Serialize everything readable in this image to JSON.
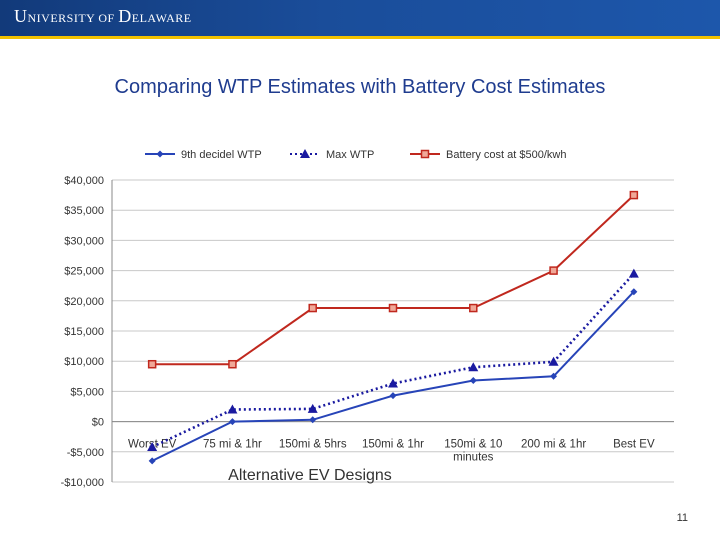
{
  "header": {
    "logo_text": "UNIVERSITY OF DELAWARE",
    "logo_parts": [
      "U",
      "NIVERSITY",
      " OF ",
      "D",
      "ELAWARE"
    ]
  },
  "slide": {
    "title": "Comparing WTP Estimates with Battery Cost Estimates",
    "page_number": "11"
  },
  "colors": {
    "banner": "#1a4d9a",
    "accent": "#f2c200",
    "title": "#1f3c8f",
    "series_blue": "#2744b8",
    "series_navy": "#1a1aa0",
    "series_red": "#c0281e"
  },
  "chart_data": {
    "type": "line",
    "title": "",
    "xlabel": "Alternative EV Designs",
    "ylabel": "",
    "categories": [
      "Worst EV",
      "75 mi & 1hr",
      "150mi & 5hrs",
      "150mi & 1hr",
      "150mi & 10 minutes",
      "200 mi & 1hr",
      "Best EV"
    ],
    "category_lines": [
      [
        "Worst EV"
      ],
      [
        "75 mi & 1hr"
      ],
      [
        "150mi & 5hrs"
      ],
      [
        "150mi & 1hr"
      ],
      [
        "150mi & 10",
        "minutes"
      ],
      [
        "200 mi & 1hr"
      ],
      [
        "Best EV"
      ]
    ],
    "ylim": [
      -10000,
      40000
    ],
    "yticks": [
      40000,
      35000,
      30000,
      25000,
      20000,
      15000,
      10000,
      5000,
      0,
      -5000,
      -10000
    ],
    "ytick_labels": [
      "$40,000",
      "$35,000",
      "$30,000",
      "$25,000",
      "$20,000",
      "$15,000",
      "$10,000",
      "$5,000",
      "$0",
      "-$5,000",
      "-$10,000"
    ],
    "grid": true,
    "legend_position": "top",
    "series": [
      {
        "name": "9th decidel WTP",
        "marker": "diamond",
        "line": "solid",
        "color": "#2744b8",
        "values": [
          -6500,
          0,
          300,
          4300,
          6800,
          7500,
          21500
        ]
      },
      {
        "name": "Max WTP",
        "marker": "triangle",
        "line": "dotted",
        "color": "#1a1aa0",
        "values": [
          -4200,
          2000,
          2100,
          6300,
          9000,
          9900,
          24500
        ]
      },
      {
        "name": "Battery cost at $500/kwh",
        "marker": "square",
        "line": "solid",
        "color": "#c0281e",
        "values": [
          9500,
          9500,
          18800,
          18800,
          18800,
          25000,
          37500
        ]
      }
    ]
  }
}
